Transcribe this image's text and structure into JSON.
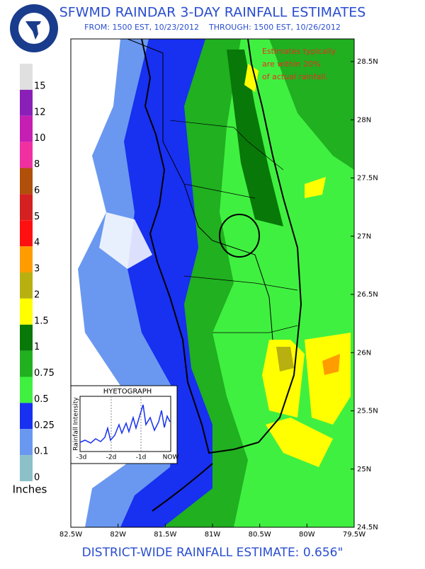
{
  "header": {
    "title": "SFWMD RAINDAR 3-DAY RAINFALL ESTIMATES",
    "subtitle": "FROM: 1500 EST, 10/23/2012    THROUGH: 1500 EST, 10/26/2012"
  },
  "legend": {
    "unit": "Inches",
    "items": [
      {
        "label": "15",
        "color": "#e0e0e0"
      },
      {
        "label": "12",
        "color": "#8a1fb8"
      },
      {
        "label": "10",
        "color": "#c41fb2"
      },
      {
        "label": "8",
        "color": "#f030a0"
      },
      {
        "label": "6",
        "color": "#b0500a"
      },
      {
        "label": "5",
        "color": "#d42020"
      },
      {
        "label": "4",
        "color": "#ff1010"
      },
      {
        "label": "3",
        "color": "#ff9c00"
      },
      {
        "label": "2",
        "color": "#b8b010"
      },
      {
        "label": "1.5",
        "color": "#ffff00"
      },
      {
        "label": "1",
        "color": "#087808"
      },
      {
        "label": "0.75",
        "color": "#20b020"
      },
      {
        "label": "0.5",
        "color": "#40f040"
      },
      {
        "label": "0.25",
        "color": "#1830f0"
      },
      {
        "label": "0.1",
        "color": "#6a98f0"
      },
      {
        "label": "0",
        "color": "#8cc0c8"
      }
    ]
  },
  "map": {
    "longitudes": [
      "82.5W",
      "82W",
      "81.5W",
      "81W",
      "80.5W",
      "80W",
      "79.5W"
    ],
    "latitudes": [
      "28.5N",
      "28N",
      "27.5N",
      "27N",
      "26.5N",
      "26N",
      "25.5N",
      "25N",
      "24.5N"
    ],
    "note": [
      "Estimates typically",
      "are within 20%",
      "of actual rainfall."
    ]
  },
  "hyetograph": {
    "title": "HYETOGRAPH",
    "ylabel": "Rainfall Intensity",
    "xlabels": [
      "-3d",
      "-2d",
      "-1d",
      "NOW"
    ]
  },
  "footer": {
    "estimate": "DISTRICT-WIDE RAINFALL ESTIMATE: 0.656\""
  }
}
